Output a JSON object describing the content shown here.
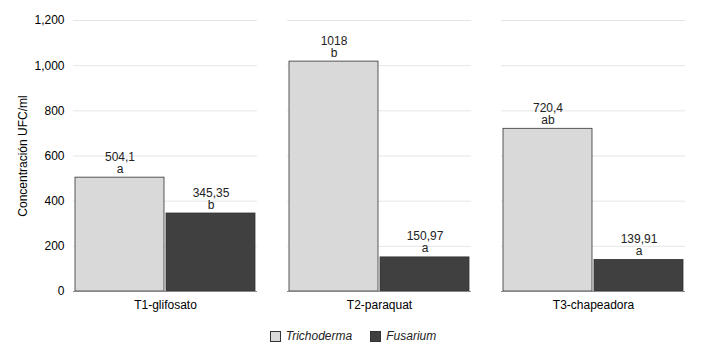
{
  "chart_data": {
    "type": "bar",
    "y_label": "Concentración UFC/ml",
    "categories": [
      "T1-glifosato",
      "T2-paraquat",
      "T3-chapeadora"
    ],
    "series": [
      {
        "name": "Trichoderma",
        "color": "#d9d9d9",
        "values": [
          504.1,
          1018,
          720.4
        ],
        "value_labels": [
          "504,1",
          "1018",
          "720,4"
        ],
        "letters": [
          "a",
          "b",
          "ab"
        ]
      },
      {
        "name": "Fusarium",
        "color": "#404040",
        "values": [
          345.35,
          150.97,
          139.91
        ],
        "value_labels": [
          "345,35",
          "150,97",
          "139,91"
        ],
        "letters": [
          "b",
          "a",
          "a"
        ]
      }
    ],
    "ylim": [
      0,
      1200
    ],
    "yticks": [
      0,
      200,
      400,
      600,
      800,
      1000,
      1200
    ],
    "grid": true,
    "data_labels": true,
    "legend": "bottom"
  }
}
